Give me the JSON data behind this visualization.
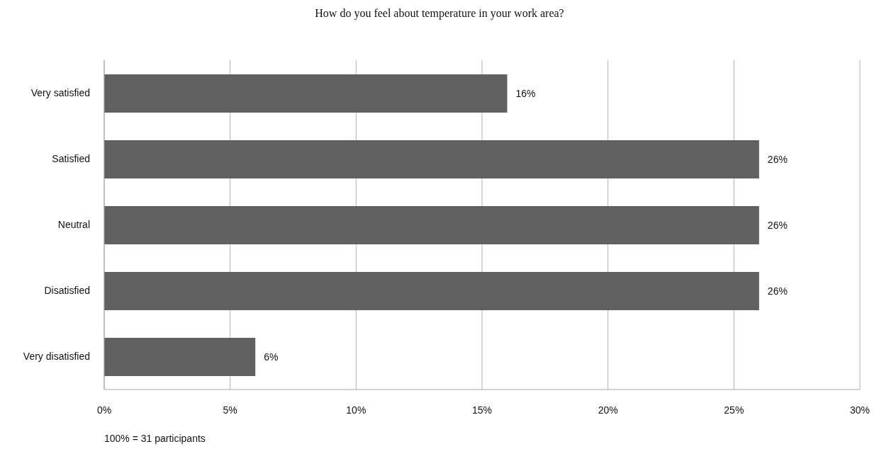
{
  "chart_data": {
    "type": "bar",
    "orientation": "horizontal",
    "title": "How do you feel about temperature in your work area?",
    "categories": [
      "Very satisfied",
      "Satisfied",
      "Neutral",
      "Disatisfied",
      "Very disatisfied"
    ],
    "values": [
      16,
      26,
      26,
      26,
      6
    ],
    "value_labels": [
      "16%",
      "26%",
      "26%",
      "26%",
      "6%"
    ],
    "color": "#606060",
    "xlim": [
      0,
      30
    ],
    "xticks": [
      {
        "value": 0,
        "label": "0%"
      },
      {
        "value": 5,
        "label": "5%"
      },
      {
        "value": 10,
        "label": "10%"
      },
      {
        "value": 15,
        "label": "15%"
      },
      {
        "value": 20,
        "label": "20%"
      },
      {
        "value": 25,
        "label": "25%"
      },
      {
        "value": 30,
        "label": "30%"
      }
    ],
    "grid": "x",
    "annotations": [
      "100% = 31 participants"
    ]
  }
}
